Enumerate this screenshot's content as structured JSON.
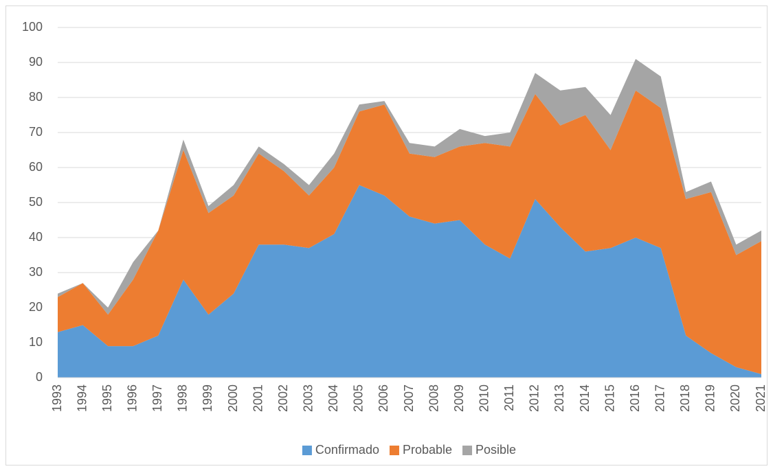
{
  "chart_data": {
    "type": "stacked-area",
    "categories": [
      "1993",
      "1994",
      "1995",
      "1996",
      "1997",
      "1998",
      "1999",
      "2000",
      "2001",
      "2002",
      "2003",
      "2004",
      "2005",
      "2006",
      "2007",
      "2008",
      "2009",
      "2010",
      "2011",
      "2012",
      "2013",
      "2014",
      "2015",
      "2016",
      "2017",
      "2018",
      "2019",
      "2020",
      "2021"
    ],
    "series": [
      {
        "name": "Confirmado",
        "color": "#5b9bd5",
        "values": [
          13,
          15,
          9,
          9,
          12,
          28,
          18,
          24,
          38,
          38,
          37,
          41,
          55,
          52,
          46,
          44,
          45,
          38,
          34,
          51,
          43,
          36,
          37,
          40,
          37,
          12,
          7,
          3,
          1
        ]
      },
      {
        "name": "Probable",
        "color": "#ed7d31",
        "values": [
          10,
          12,
          9,
          19,
          30,
          37,
          29,
          28,
          26,
          21,
          15,
          19,
          21,
          26,
          18,
          19,
          21,
          29,
          32,
          30,
          29,
          39,
          28,
          42,
          40,
          39,
          46,
          32,
          38
        ]
      },
      {
        "name": "Posible",
        "color": "#a5a5a5",
        "values": [
          1,
          0,
          2,
          5,
          0,
          3,
          2,
          3,
          2,
          2,
          3,
          4,
          2,
          1,
          3,
          3,
          5,
          2,
          4,
          6,
          10,
          8,
          10,
          9,
          9,
          2,
          3,
          3,
          3
        ]
      }
    ],
    "ylim": [
      0,
      100
    ],
    "yticks": [
      0,
      10,
      20,
      30,
      40,
      50,
      60,
      70,
      80,
      90,
      100
    ],
    "grid": true,
    "legend": "bottom"
  }
}
